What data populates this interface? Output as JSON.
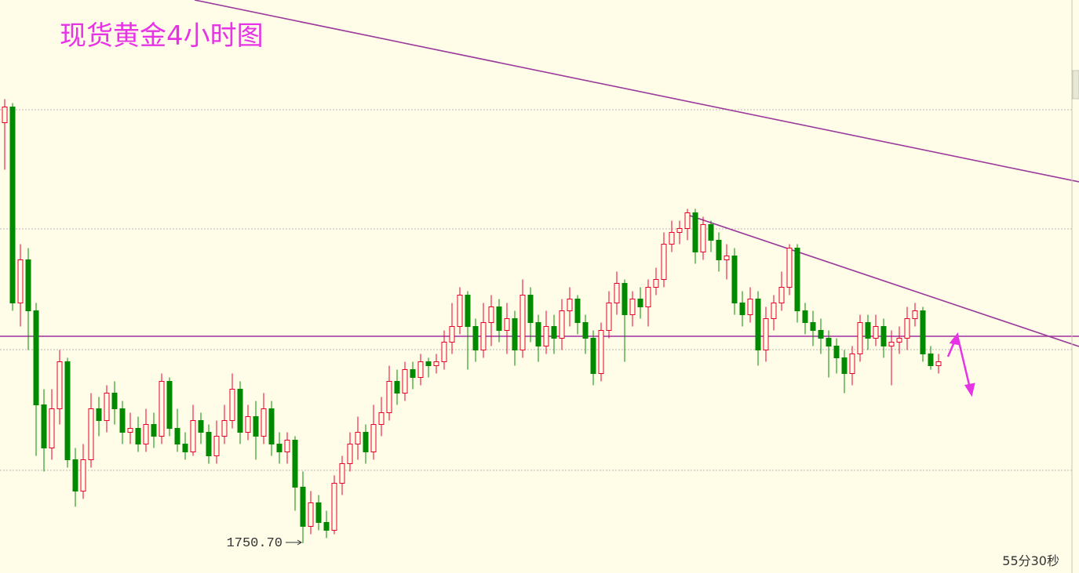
{
  "chart_data": {
    "type": "candlestick",
    "title": "现货黄金4小时图",
    "timer": "55分30秒",
    "low_annotation": {
      "value": 1750.7,
      "label": "1750.70"
    },
    "ylim": [
      1743.1,
      1889.3
    ],
    "grid_levels": [
      1861.3,
      1830.9,
      1800.1,
      1769.3
    ],
    "level_line": {
      "value": 1803.5,
      "color": "#a030a0"
    },
    "up_color": "#e8002a",
    "down_color": "#008a00",
    "open": [
      1858,
      1862,
      1812,
      1823,
      1810,
      1786,
      1775,
      1785,
      1797,
      1772,
      1764,
      1772,
      1785,
      1782,
      1789,
      1785,
      1779,
      1780,
      1776,
      1781,
      1778,
      1792,
      1780,
      1776,
      1774,
      1782,
      1779,
      1773,
      1778,
      1782,
      1790,
      1779,
      1783,
      1778,
      1785,
      1776,
      1774,
      1777,
      1765,
      1755,
      1761,
      1756,
      1754,
      1766,
      1771,
      1776,
      1779,
      1774,
      1781,
      1784,
      1792,
      1789,
      1795,
      1793,
      1797,
      1796,
      1797,
      1802,
      1806,
      1814,
      1806,
      1800,
      1807,
      1811,
      1805,
      1808,
      1800,
      1814,
      1807,
      1801,
      1806,
      1803,
      1810,
      1813,
      1807,
      1803,
      1794,
      1805,
      1812,
      1817,
      1809,
      1813,
      1811,
      1816,
      1818,
      1827,
      1830,
      1831,
      1835,
      1825,
      1832,
      1828,
      1823,
      1824,
      1812,
      1809,
      1813,
      1800,
      1808,
      1812,
      1816,
      1826,
      1810,
      1807,
      1805,
      1803,
      1801,
      1798,
      1794,
      1799,
      1807,
      1803,
      1806,
      1801,
      1802,
      1803,
      1808,
      1810,
      1799,
      1796
    ],
    "high": [
      1864,
      1863,
      1827,
      1826,
      1812,
      1790,
      1790,
      1800,
      1798,
      1775,
      1776,
      1789,
      1788,
      1791,
      1792,
      1787,
      1784,
      1783,
      1785,
      1784,
      1794,
      1793,
      1785,
      1779,
      1786,
      1784,
      1781,
      1782,
      1786,
      1794,
      1792,
      1786,
      1787,
      1789,
      1787,
      1779,
      1779,
      1778,
      1769,
      1764,
      1763,
      1759,
      1768,
      1773,
      1779,
      1783,
      1781,
      1786,
      1788,
      1796,
      1795,
      1797,
      1797,
      1799,
      1798,
      1799,
      1805,
      1812,
      1816,
      1815,
      1808,
      1812,
      1814,
      1813,
      1812,
      1810,
      1818,
      1816,
      1809,
      1810,
      1809,
      1813,
      1816,
      1814,
      1809,
      1805,
      1807,
      1815,
      1820,
      1818,
      1815,
      1816,
      1818,
      1821,
      1830,
      1833,
      1833,
      1836,
      1836,
      1834,
      1833,
      1830,
      1827,
      1826,
      1815,
      1816,
      1815,
      1811,
      1814,
      1820,
      1827,
      1827,
      1812,
      1810,
      1808,
      1805,
      1803,
      1800,
      1801,
      1809,
      1809,
      1809,
      1808,
      1805,
      1806,
      1811,
      1812,
      1811,
      1801,
      1799
    ],
    "low": [
      1846,
      1810,
      1806,
      1800,
      1773,
      1769,
      1772,
      1781,
      1770,
      1760,
      1762,
      1770,
      1778,
      1779,
      1781,
      1776,
      1776,
      1774,
      1774,
      1775,
      1776,
      1778,
      1774,
      1772,
      1773,
      1776,
      1771,
      1771,
      1776,
      1780,
      1776,
      1777,
      1772,
      1776,
      1773,
      1771,
      1771,
      1759,
      1750.7,
      1753,
      1754,
      1752,
      1753,
      1763,
      1769,
      1772,
      1771,
      1772,
      1778,
      1782,
      1786,
      1787,
      1790,
      1791,
      1793,
      1794,
      1795,
      1799,
      1804,
      1795,
      1797,
      1798,
      1801,
      1802,
      1799,
      1796,
      1798,
      1802,
      1797,
      1799,
      1799,
      1800,
      1806,
      1804,
      1799,
      1791,
      1792,
      1803,
      1809,
      1797,
      1806,
      1808,
      1806,
      1814,
      1816,
      1825,
      1827,
      1828,
      1822,
      1823,
      1825,
      1820,
      1818,
      1809,
      1806,
      1807,
      1796,
      1797,
      1805,
      1810,
      1814,
      1807,
      1804,
      1801,
      1799,
      1793,
      1794,
      1789,
      1791,
      1797,
      1800,
      1801,
      1798,
      1791,
      1799,
      1800,
      1806,
      1797,
      1795,
      1794
    ],
    "close": [
      1862,
      1812,
      1823,
      1810,
      1786,
      1775,
      1785,
      1797,
      1772,
      1764,
      1772,
      1785,
      1782,
      1789,
      1785,
      1779,
      1780,
      1776,
      1781,
      1778,
      1792,
      1780,
      1776,
      1774,
      1782,
      1779,
      1773,
      1778,
      1782,
      1790,
      1779,
      1783,
      1778,
      1785,
      1776,
      1774,
      1777,
      1765,
      1755,
      1761,
      1756,
      1754,
      1766,
      1771,
      1776,
      1779,
      1774,
      1781,
      1784,
      1792,
      1789,
      1795,
      1793,
      1797,
      1796,
      1797,
      1802,
      1806,
      1814,
      1806,
      1800,
      1807,
      1811,
      1805,
      1808,
      1800,
      1814,
      1807,
      1801,
      1806,
      1803,
      1810,
      1813,
      1807,
      1803,
      1794,
      1805,
      1812,
      1817,
      1809,
      1813,
      1811,
      1816,
      1818,
      1827,
      1830,
      1831,
      1835,
      1825,
      1832,
      1828,
      1823,
      1824,
      1812,
      1809,
      1813,
      1800,
      1808,
      1812,
      1816,
      1826,
      1810,
      1807,
      1805,
      1803,
      1801,
      1798,
      1794,
      1799,
      1807,
      1803,
      1806,
      1801,
      1802,
      1803,
      1808,
      1810,
      1799,
      1796,
      1797
    ]
  }
}
